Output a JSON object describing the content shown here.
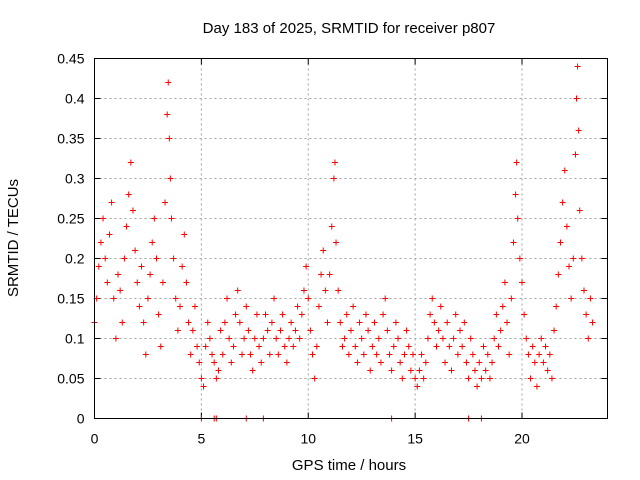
{
  "chart_data": {
    "type": "scatter",
    "title": "Day 183 of 2025, SRMTID for receiver p807",
    "xlabel": "GPS time / hours",
    "ylabel": "SRMTID / TECUs",
    "xlim": [
      0,
      24
    ],
    "ylim": [
      0,
      0.45
    ],
    "x_ticks": [
      0,
      5,
      10,
      15,
      20
    ],
    "y_ticks": [
      0,
      0.05,
      0.1,
      0.15,
      0.2,
      0.25,
      0.3,
      0.35,
      0.4,
      0.45
    ],
    "x_tick_labels": [
      "0",
      "5",
      "10",
      "15",
      "20"
    ],
    "y_tick_labels": [
      "0",
      "0.05",
      "0.1",
      "0.15",
      "0.2",
      "0.25",
      "0.3",
      "0.35",
      "0.4",
      "0.45"
    ],
    "grid": true,
    "marker": "plus",
    "color": "#ff0000",
    "series": [
      {
        "name": "SRMTID",
        "points": [
          [
            0.0,
            0.12
          ],
          [
            0.1,
            0.15
          ],
          [
            0.2,
            0.19
          ],
          [
            0.3,
            0.22
          ],
          [
            0.4,
            0.25
          ],
          [
            0.5,
            0.2
          ],
          [
            0.6,
            0.17
          ],
          [
            0.7,
            0.23
          ],
          [
            0.8,
            0.27
          ],
          [
            0.9,
            0.15
          ],
          [
            1.0,
            0.1
          ],
          [
            1.1,
            0.18
          ],
          [
            1.2,
            0.16
          ],
          [
            1.3,
            0.12
          ],
          [
            1.4,
            0.2
          ],
          [
            1.5,
            0.24
          ],
          [
            1.6,
            0.28
          ],
          [
            1.7,
            0.32
          ],
          [
            1.8,
            0.26
          ],
          [
            1.9,
            0.21
          ],
          [
            2.0,
            0.17
          ],
          [
            2.1,
            0.14
          ],
          [
            2.2,
            0.19
          ],
          [
            2.3,
            0.12
          ],
          [
            2.4,
            0.08
          ],
          [
            2.5,
            0.15
          ],
          [
            2.6,
            0.18
          ],
          [
            2.7,
            0.22
          ],
          [
            2.8,
            0.25
          ],
          [
            2.9,
            0.2
          ],
          [
            3.0,
            0.13
          ],
          [
            3.1,
            0.09
          ],
          [
            3.2,
            0.17
          ],
          [
            3.3,
            0.27
          ],
          [
            3.4,
            0.38
          ],
          [
            3.45,
            0.42
          ],
          [
            3.5,
            0.35
          ],
          [
            3.55,
            0.3
          ],
          [
            3.6,
            0.25
          ],
          [
            3.7,
            0.2
          ],
          [
            3.8,
            0.15
          ],
          [
            3.9,
            0.11
          ],
          [
            4.0,
            0.14
          ],
          [
            4.1,
            0.19
          ],
          [
            4.2,
            0.23
          ],
          [
            4.3,
            0.17
          ],
          [
            4.4,
            0.12
          ],
          [
            4.5,
            0.08
          ],
          [
            4.6,
            0.11
          ],
          [
            4.7,
            0.14
          ],
          [
            4.8,
            0.09
          ],
          [
            4.9,
            0.07
          ],
          [
            5.0,
            0.05
          ],
          [
            5.1,
            0.04
          ],
          [
            5.2,
            0.09
          ],
          [
            5.3,
            0.12
          ],
          [
            5.4,
            0.1
          ],
          [
            5.5,
            0.08
          ],
          [
            5.6,
            0.07
          ],
          [
            5.7,
            0.05
          ],
          [
            5.8,
            0.06
          ],
          [
            5.9,
            0.11
          ],
          [
            6.0,
            0.08
          ],
          [
            6.1,
            0.12
          ],
          [
            6.2,
            0.15
          ],
          [
            6.3,
            0.1
          ],
          [
            6.4,
            0.07
          ],
          [
            6.5,
            0.09
          ],
          [
            6.6,
            0.13
          ],
          [
            6.7,
            0.16
          ],
          [
            6.8,
            0.12
          ],
          [
            6.9,
            0.08
          ],
          [
            7.0,
            0.1
          ],
          [
            7.1,
            0.14
          ],
          [
            7.2,
            0.11
          ],
          [
            7.3,
            0.08
          ],
          [
            7.4,
            0.06
          ],
          [
            7.5,
            0.1
          ],
          [
            7.6,
            0.13
          ],
          [
            7.7,
            0.09
          ],
          [
            7.8,
            0.07
          ],
          [
            7.9,
            0.1
          ],
          [
            8.0,
            0.13
          ],
          [
            8.1,
            0.11
          ],
          [
            8.2,
            0.08
          ],
          [
            8.3,
            0.12
          ],
          [
            8.4,
            0.15
          ],
          [
            8.5,
            0.1
          ],
          [
            8.6,
            0.08
          ],
          [
            8.7,
            0.11
          ],
          [
            8.8,
            0.13
          ],
          [
            8.9,
            0.09
          ],
          [
            9.0,
            0.07
          ],
          [
            9.1,
            0.1
          ],
          [
            9.2,
            0.12
          ],
          [
            9.3,
            0.09
          ],
          [
            9.4,
            0.11
          ],
          [
            9.5,
            0.14
          ],
          [
            9.6,
            0.1
          ],
          [
            9.7,
            0.13
          ],
          [
            9.8,
            0.16
          ],
          [
            9.9,
            0.19
          ],
          [
            10.0,
            0.15
          ],
          [
            10.1,
            0.11
          ],
          [
            10.2,
            0.08
          ],
          [
            10.3,
            0.05
          ],
          [
            10.4,
            0.09
          ],
          [
            10.5,
            0.14
          ],
          [
            10.6,
            0.18
          ],
          [
            10.7,
            0.21
          ],
          [
            10.8,
            0.16
          ],
          [
            10.9,
            0.12
          ],
          [
            11.0,
            0.18
          ],
          [
            11.1,
            0.24
          ],
          [
            11.2,
            0.3
          ],
          [
            11.25,
            0.32
          ],
          [
            11.3,
            0.22
          ],
          [
            11.4,
            0.16
          ],
          [
            11.5,
            0.12
          ],
          [
            11.6,
            0.09
          ],
          [
            11.7,
            0.1
          ],
          [
            11.8,
            0.13
          ],
          [
            11.9,
            0.08
          ],
          [
            12.0,
            0.11
          ],
          [
            12.1,
            0.14
          ],
          [
            12.2,
            0.09
          ],
          [
            12.3,
            0.07
          ],
          [
            12.4,
            0.12
          ],
          [
            12.5,
            0.1
          ],
          [
            12.6,
            0.08
          ],
          [
            12.7,
            0.13
          ],
          [
            12.8,
            0.11
          ],
          [
            12.9,
            0.06
          ],
          [
            13.0,
            0.09
          ],
          [
            13.1,
            0.12
          ],
          [
            13.2,
            0.08
          ],
          [
            13.3,
            0.1
          ],
          [
            13.4,
            0.07
          ],
          [
            13.5,
            0.13
          ],
          [
            13.6,
            0.15
          ],
          [
            13.7,
            0.11
          ],
          [
            13.8,
            0.08
          ],
          [
            13.9,
            0.06
          ],
          [
            14.0,
            0.09
          ],
          [
            14.1,
            0.12
          ],
          [
            14.2,
            0.1
          ],
          [
            14.3,
            0.07
          ],
          [
            14.4,
            0.05
          ],
          [
            14.5,
            0.08
          ],
          [
            14.6,
            0.11
          ],
          [
            14.7,
            0.09
          ],
          [
            14.8,
            0.06
          ],
          [
            14.9,
            0.08
          ],
          [
            15.0,
            0.05
          ],
          [
            15.1,
            0.04
          ],
          [
            15.2,
            0.06
          ],
          [
            15.3,
            0.08
          ],
          [
            15.4,
            0.05
          ],
          [
            15.5,
            0.07
          ],
          [
            15.6,
            0.1
          ],
          [
            15.7,
            0.13
          ],
          [
            15.8,
            0.15
          ],
          [
            15.9,
            0.12
          ],
          [
            16.0,
            0.09
          ],
          [
            16.1,
            0.11
          ],
          [
            16.2,
            0.14
          ],
          [
            16.3,
            0.1
          ],
          [
            16.4,
            0.07
          ],
          [
            16.5,
            0.12
          ],
          [
            16.6,
            0.09
          ],
          [
            16.7,
            0.06
          ],
          [
            16.8,
            0.1
          ],
          [
            16.9,
            0.13
          ],
          [
            17.0,
            0.08
          ],
          [
            17.1,
            0.11
          ],
          [
            17.2,
            0.09
          ],
          [
            17.3,
            0.12
          ],
          [
            17.4,
            0.07
          ],
          [
            17.5,
            0.05
          ],
          [
            17.6,
            0.1
          ],
          [
            17.7,
            0.08
          ],
          [
            17.8,
            0.06
          ],
          [
            17.9,
            0.04
          ],
          [
            18.0,
            0.07
          ],
          [
            18.1,
            0.05
          ],
          [
            18.2,
            0.09
          ],
          [
            18.3,
            0.06
          ],
          [
            18.4,
            0.08
          ],
          [
            18.5,
            0.05
          ],
          [
            18.6,
            0.07
          ],
          [
            18.7,
            0.1
          ],
          [
            18.8,
            0.13
          ],
          [
            18.9,
            0.09
          ],
          [
            19.0,
            0.11
          ],
          [
            19.1,
            0.14
          ],
          [
            19.2,
            0.17
          ],
          [
            19.3,
            0.12
          ],
          [
            19.4,
            0.08
          ],
          [
            19.5,
            0.15
          ],
          [
            19.6,
            0.22
          ],
          [
            19.7,
            0.28
          ],
          [
            19.75,
            0.32
          ],
          [
            19.8,
            0.25
          ],
          [
            19.9,
            0.2
          ],
          [
            20.0,
            0.17
          ],
          [
            20.1,
            0.13
          ],
          [
            20.2,
            0.1
          ],
          [
            20.3,
            0.08
          ],
          [
            20.4,
            0.05
          ],
          [
            20.5,
            0.09
          ],
          [
            20.6,
            0.07
          ],
          [
            20.7,
            0.04
          ],
          [
            20.8,
            0.08
          ],
          [
            20.9,
            0.1
          ],
          [
            21.0,
            0.07
          ],
          [
            21.1,
            0.09
          ],
          [
            21.2,
            0.06
          ],
          [
            21.3,
            0.08
          ],
          [
            21.4,
            0.05
          ],
          [
            21.5,
            0.11
          ],
          [
            21.6,
            0.14
          ],
          [
            21.7,
            0.18
          ],
          [
            21.8,
            0.22
          ],
          [
            21.9,
            0.27
          ],
          [
            22.0,
            0.31
          ],
          [
            22.1,
            0.24
          ],
          [
            22.2,
            0.19
          ],
          [
            22.3,
            0.15
          ],
          [
            22.4,
            0.2
          ],
          [
            22.5,
            0.33
          ],
          [
            22.55,
            0.4
          ],
          [
            22.6,
            0.44
          ],
          [
            22.65,
            0.36
          ],
          [
            22.7,
            0.26
          ],
          [
            22.8,
            0.2
          ],
          [
            22.9,
            0.16
          ],
          [
            23.0,
            0.13
          ],
          [
            23.1,
            0.1
          ],
          [
            23.2,
            0.15
          ],
          [
            23.3,
            0.12
          ],
          [
            5.0,
            0.0
          ],
          [
            5.6,
            0.0
          ],
          [
            5.7,
            0.0
          ],
          [
            7.1,
            0.0
          ],
          [
            7.9,
            0.0
          ],
          [
            13.9,
            0.0
          ],
          [
            17.5,
            0.0
          ],
          [
            18.1,
            0.0
          ]
        ]
      }
    ]
  }
}
